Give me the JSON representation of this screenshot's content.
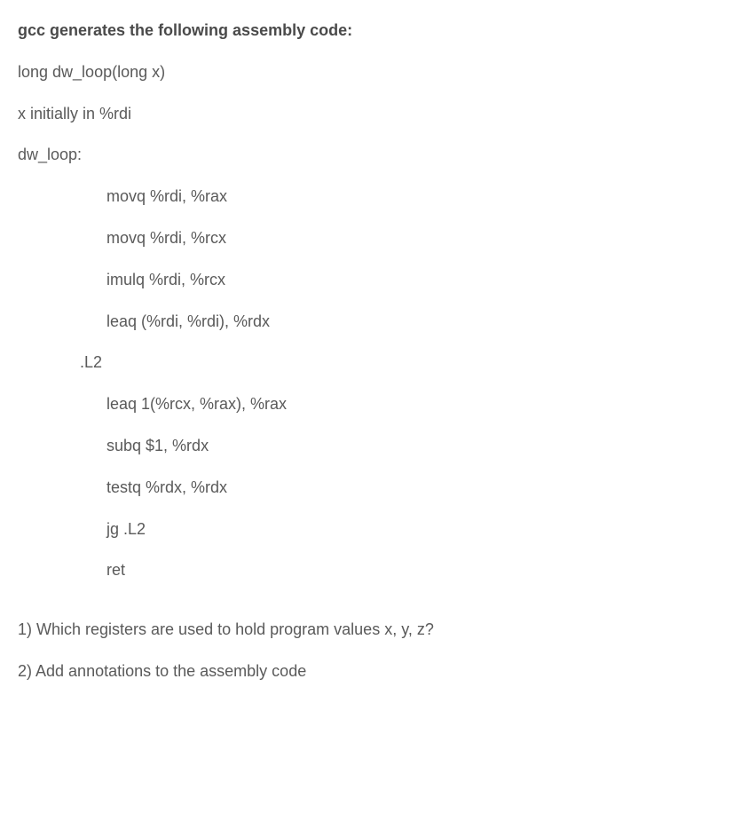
{
  "heading": "gcc generates the following assembly code:",
  "declaration": "long dw_loop(long x)",
  "comment": "x initially in %rdi",
  "label1": "dw_loop:",
  "code1": [
    "movq  %rdi, %rax",
    "movq  %rdi, %rcx",
    "imulq %rdi, %rcx",
    "leaq   (%rdi, %rdi), %rdx"
  ],
  "label2": ".L2",
  "code2": [
    "leaq   1(%rcx, %rax), %rax",
    "subq   $1, %rdx",
    "testq %rdx, %rdx",
    "jg      .L2",
    "ret"
  ],
  "question1": "1) Which registers are used to hold program values x, y, z?",
  "question2": "2) Add annotations to the assembly code"
}
